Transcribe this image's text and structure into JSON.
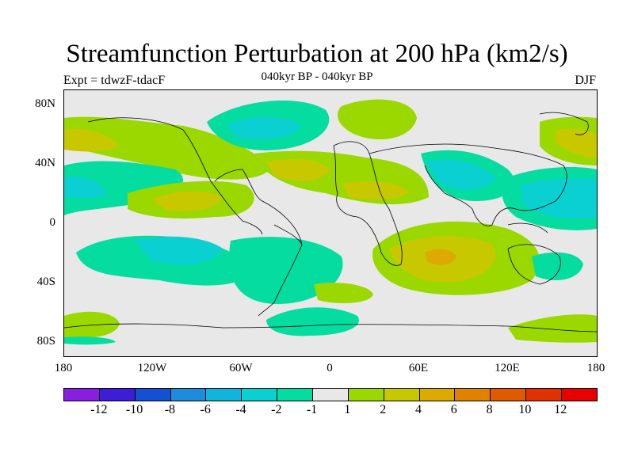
{
  "title": "Streamfunction Perturbation at 200 hPa (km2/s)",
  "subtitle_left": "Expt = tdwzF-tdacF",
  "subtitle_center": "040kyr BP - 040kyr BP",
  "subtitle_right": "DJF",
  "y_axis": [
    "80N",
    "40N",
    "0",
    "40S",
    "80S"
  ],
  "x_axis": [
    "180",
    "120W",
    "60W",
    "0",
    "60E",
    "120E",
    "180"
  ],
  "colorbar": {
    "labels": [
      "-12",
      "-10",
      "-8",
      "-6",
      "-4",
      "-2",
      "-1",
      "1",
      "2",
      "4",
      "6",
      "8",
      "10",
      "12"
    ],
    "colors": [
      "#8a1ee0",
      "#3d1ed6",
      "#1450d2",
      "#1e8cdc",
      "#12b4dc",
      "#0ad0d2",
      "#05dca0",
      "#e8e8e8",
      "#9ad800",
      "#c8c800",
      "#dcaa00",
      "#e08200",
      "#e05a00",
      "#e03200",
      "#e60000"
    ]
  },
  "colors": {
    "background": "#e8e8e8",
    "neg_weak": "#05dca0",
    "neg_mid": "#0ad0d2",
    "pos_weak": "#9ad800",
    "pos_mid": "#c8c800",
    "pos_strong": "#dcaa00"
  }
}
